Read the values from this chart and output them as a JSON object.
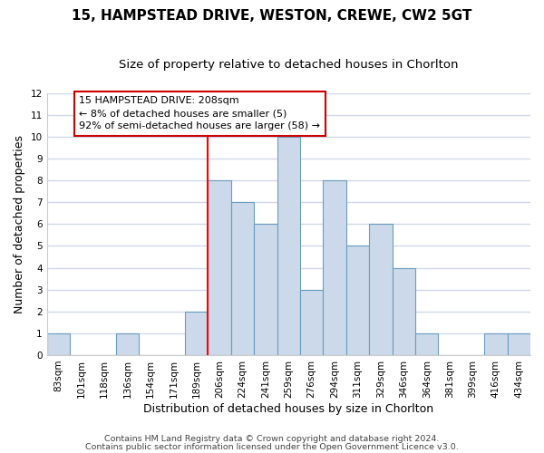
{
  "title": "15, HAMPSTEAD DRIVE, WESTON, CREWE, CW2 5GT",
  "subtitle": "Size of property relative to detached houses in Chorlton",
  "xlabel": "Distribution of detached houses by size in Chorlton",
  "ylabel": "Number of detached properties",
  "bar_labels": [
    "83sqm",
    "101sqm",
    "118sqm",
    "136sqm",
    "154sqm",
    "171sqm",
    "189sqm",
    "206sqm",
    "224sqm",
    "241sqm",
    "259sqm",
    "276sqm",
    "294sqm",
    "311sqm",
    "329sqm",
    "346sqm",
    "364sqm",
    "381sqm",
    "399sqm",
    "416sqm",
    "434sqm"
  ],
  "bar_values": [
    1,
    0,
    0,
    1,
    0,
    0,
    2,
    8,
    7,
    6,
    10,
    3,
    8,
    5,
    6,
    4,
    1,
    0,
    0,
    1,
    1
  ],
  "bar_color": "#ccd9ea",
  "bar_edge_color": "#6a9dbf",
  "red_line_index": 7,
  "ylim": [
    0,
    12
  ],
  "yticks": [
    0,
    1,
    2,
    3,
    4,
    5,
    6,
    7,
    8,
    9,
    10,
    11,
    12
  ],
  "annotation_text": "15 HAMPSTEAD DRIVE: 208sqm\n← 8% of detached houses are smaller (5)\n92% of semi-detached houses are larger (58) →",
  "annotation_box_color": "#ffffff",
  "annotation_box_edge": "#cc0000",
  "footnote1": "Contains HM Land Registry data © Crown copyright and database right 2024.",
  "footnote2": "Contains public sector information licensed under the Open Government Licence v3.0.",
  "bg_color": "#ffffff",
  "plot_bg_color": "#ffffff",
  "grid_color": "#d0d8e8",
  "title_fontsize": 11,
  "subtitle_fontsize": 9.5,
  "axis_label_fontsize": 9,
  "tick_fontsize": 7.5,
  "annotation_fontsize": 8,
  "footnote_fontsize": 6.8
}
